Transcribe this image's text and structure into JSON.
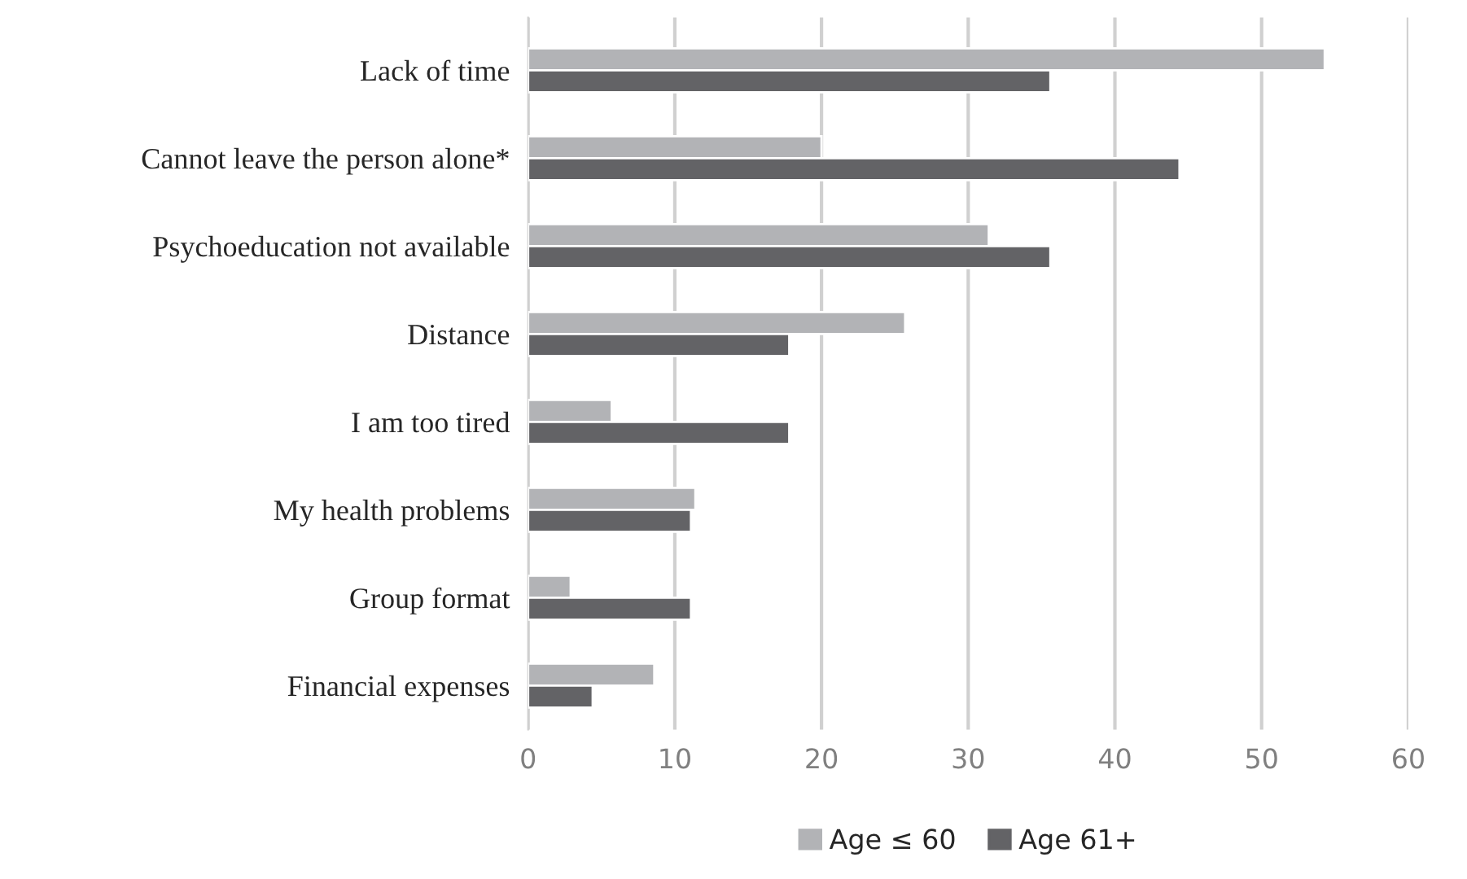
{
  "chart_data": {
    "type": "bar",
    "orientation": "horizontal",
    "categories": [
      "Lack of time",
      "Cannot leave the person alone*",
      "Psychoeducation not available",
      "Distance",
      "I am too tired",
      "My health problems",
      "Group format",
      "Financial expenses"
    ],
    "series": [
      {
        "name": "Age ≤ 60",
        "color": "#b2b3b6",
        "values": [
          54.3,
          20.0,
          31.4,
          25.7,
          5.7,
          11.4,
          2.9,
          8.6
        ]
      },
      {
        "name": "Age 61+",
        "color": "#636366",
        "values": [
          35.6,
          44.4,
          35.6,
          17.8,
          17.8,
          11.1,
          11.1,
          4.4
        ]
      }
    ],
    "xlim": [
      0,
      60
    ],
    "xticks": [
      0,
      10,
      20,
      30,
      40,
      50,
      60
    ],
    "grid": "x",
    "legend": "bottom"
  }
}
